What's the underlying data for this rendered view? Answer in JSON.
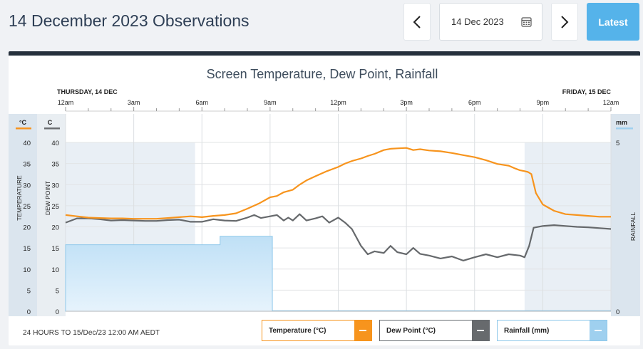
{
  "header": {
    "title": "14 December 2023 Observations",
    "date_value": "14 Dec 2023",
    "latest_label": "Latest"
  },
  "icons": {
    "prev": "chevron-left-icon",
    "next": "chevron-right-icon",
    "calendar": "calendar-icon"
  },
  "colors": {
    "temperature": "#f7941d",
    "dew_point": "#66696c",
    "rainfall": "#9fd0ef",
    "accent": "#55b3ea",
    "panel_bar": "#25303c"
  },
  "footer": {
    "period": "24 HOURS TO 15/Dec/23 12:00 AM AEDT"
  },
  "legend": {
    "temperature": "Temperature (°C)",
    "dew_point": "Dew Point (°C)",
    "rainfall": "Rainfall (mm)"
  },
  "chart_data": {
    "type": "line",
    "title": "Screen Temperature, Dew Point, Rainfall",
    "day_labels": {
      "start": "THURSDAY, 14 DEC",
      "end": "FRIDAY, 15 DEC"
    },
    "x_tick_labels": [
      "12am",
      "3am",
      "6am",
      "9am",
      "12pm",
      "3pm",
      "6pm",
      "9pm",
      "12am"
    ],
    "x_range_hours": [
      0,
      24
    ],
    "left_axis_1": {
      "unit": "°C",
      "label": "TEMPERATURE",
      "ticks": [
        0,
        5,
        10,
        15,
        20,
        25,
        30,
        35,
        40
      ],
      "range": [
        0,
        40
      ]
    },
    "left_axis_2": {
      "unit": "C",
      "label": "DEW POINT",
      "ticks": [
        0,
        5,
        10,
        15,
        20,
        25,
        30,
        35,
        40
      ],
      "range": [
        0,
        40
      ]
    },
    "right_axis": {
      "unit": "mm",
      "label": "RAINFALL",
      "ticks": [
        0,
        5
      ],
      "range": [
        0,
        5
      ]
    },
    "shaded_night": [
      [
        0,
        5.7
      ],
      [
        20.2,
        24
      ]
    ],
    "series": [
      {
        "name": "Temperature",
        "x": [
          0,
          0.5,
          1,
          1.5,
          2,
          2.5,
          3,
          3.5,
          4,
          4.5,
          5,
          5.5,
          6,
          6.5,
          7,
          7.5,
          8,
          8.5,
          9,
          9.3,
          9.6,
          10,
          10.3,
          10.6,
          11,
          11.5,
          12,
          12.3,
          12.6,
          13,
          13.3,
          13.6,
          14,
          14.3,
          14.6,
          15,
          15.3,
          15.6,
          16,
          16.5,
          17,
          17.5,
          18,
          18.5,
          19,
          19.5,
          19.8,
          20.0,
          20.2,
          20.35,
          20.5,
          20.7,
          21,
          21.5,
          22,
          22.5,
          23,
          23.5,
          24
        ],
        "values": [
          22.8,
          22.5,
          22.2,
          22.1,
          22.0,
          22.0,
          21.9,
          21.9,
          21.9,
          22.1,
          22.3,
          22.5,
          22.3,
          22.6,
          22.8,
          23.2,
          24.3,
          25.5,
          27.0,
          27.3,
          28.2,
          28.8,
          30.0,
          31.0,
          32.0,
          33.2,
          34.2,
          35.0,
          35.6,
          36.2,
          36.8,
          37.3,
          38.2,
          38.5,
          38.6,
          38.7,
          38.2,
          38.4,
          38.1,
          37.9,
          37.5,
          37.0,
          36.5,
          35.8,
          34.9,
          34.5,
          33.8,
          33.4,
          33.2,
          33.0,
          32.5,
          28.0,
          25.3,
          23.8,
          23.0,
          22.8,
          22.6,
          22.4,
          22.4
        ]
      },
      {
        "name": "Dew Point",
        "x": [
          0,
          0.5,
          1,
          1.5,
          2,
          2.5,
          3,
          3.5,
          4,
          4.5,
          5,
          5.5,
          6,
          6.5,
          7,
          7.5,
          8,
          8.3,
          8.6,
          9,
          9.3,
          9.6,
          9.8,
          10,
          10.3,
          10.6,
          11,
          11.3,
          11.6,
          12,
          12.3,
          12.6,
          13,
          13.3,
          13.6,
          14,
          14.3,
          14.6,
          15,
          15.3,
          15.6,
          16,
          16.5,
          17,
          17.5,
          18,
          18.5,
          19,
          19.5,
          20,
          20.2,
          20.4,
          20.6,
          21,
          21.5,
          22,
          22.5,
          23,
          23.5,
          24
        ],
        "values": [
          21.0,
          22.0,
          22.0,
          21.8,
          21.5,
          21.6,
          21.5,
          21.4,
          21.4,
          21.6,
          21.7,
          21.2,
          21.2,
          21.8,
          21.5,
          21.4,
          22.2,
          22.8,
          22.1,
          22.5,
          22.8,
          21.5,
          22.2,
          21.5,
          23.0,
          21.5,
          22.0,
          22.5,
          21.0,
          22.2,
          21.0,
          19.5,
          15.5,
          13.5,
          14.2,
          13.8,
          15.5,
          14.0,
          13.5,
          15.0,
          13.6,
          13.2,
          12.5,
          13.0,
          12.0,
          12.8,
          13.5,
          12.8,
          13.5,
          13.2,
          12.8,
          15.5,
          19.8,
          20.2,
          20.4,
          20.2,
          20.0,
          19.9,
          19.7,
          19.5
        ]
      }
    ],
    "rainfall": {
      "name": "Rainfall (mm)",
      "steps": [
        {
          "from": 0,
          "to": 6.8,
          "value": 1.97
        },
        {
          "from": 6.8,
          "to": 9.1,
          "value": 2.22
        }
      ],
      "after": 0
    }
  }
}
